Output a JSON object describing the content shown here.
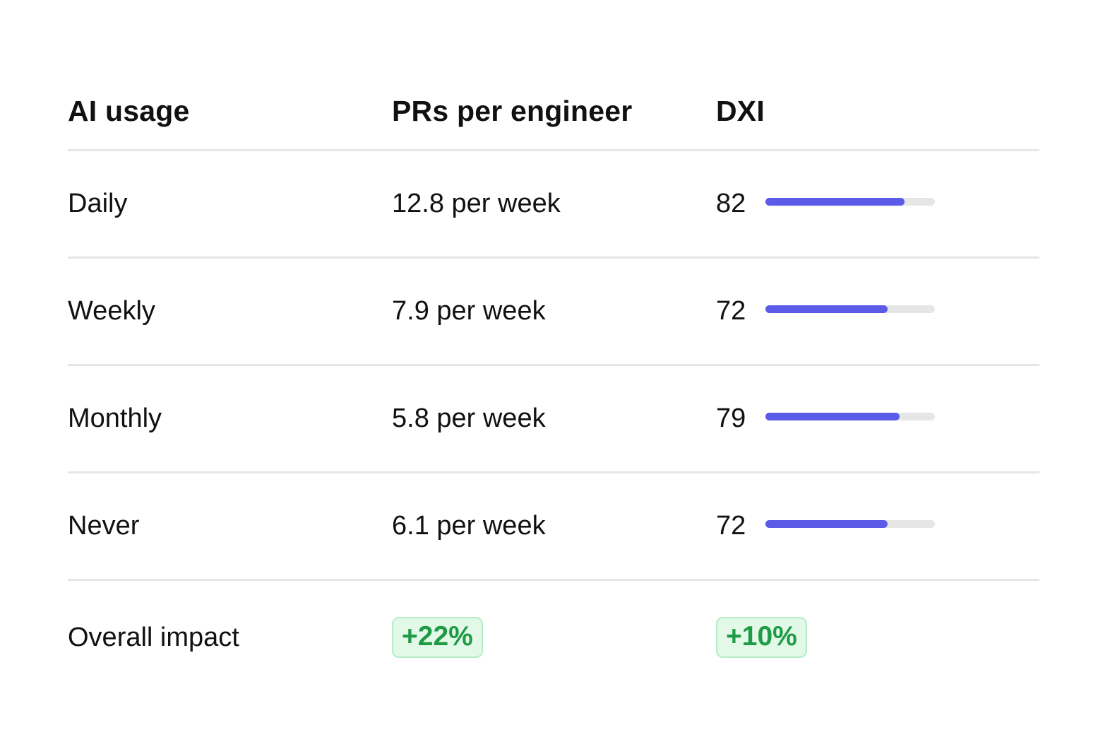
{
  "table": {
    "headers": {
      "ai_usage": "AI usage",
      "prs": "PRs per engineer",
      "dxi": "DXI"
    },
    "rows": [
      {
        "usage": "Daily",
        "prs": "12.8 per week",
        "dxi": "82",
        "dxi_fill_percent": 82
      },
      {
        "usage": "Weekly",
        "prs": "7.9 per week",
        "dxi": "72",
        "dxi_fill_percent": 72
      },
      {
        "usage": "Monthly",
        "prs": "5.8 per week",
        "dxi": "79",
        "dxi_fill_percent": 79
      },
      {
        "usage": "Never",
        "prs": "6.1 per week",
        "dxi": "72",
        "dxi_fill_percent": 72
      }
    ],
    "footer": {
      "label": "Overall impact",
      "prs_change": "+22%",
      "dxi_change": "+10%"
    }
  },
  "colors": {
    "bar_fill": "#5b5be8",
    "bar_track": "#e6e6e6",
    "badge_text": "#1f9a45",
    "badge_bg": "#e3f9e8",
    "badge_border": "#b6ecc4"
  }
}
